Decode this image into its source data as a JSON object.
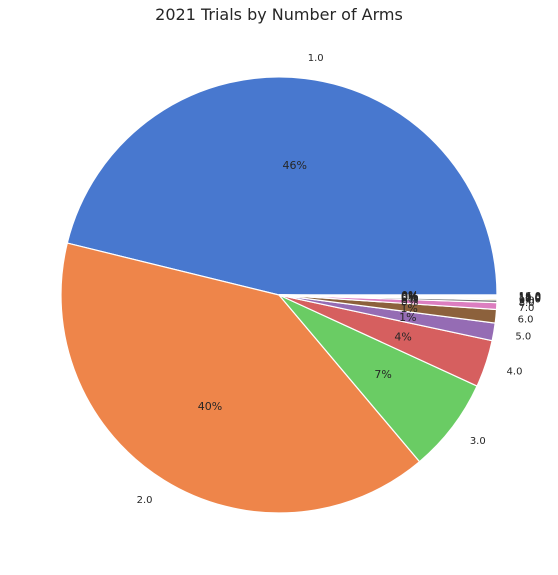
{
  "chart_data": {
    "type": "pie",
    "title": "2021 Trials by Number of Arms",
    "categories": [
      "1.0",
      "2.0",
      "3.0",
      "4.0",
      "5.0",
      "6.0",
      "7.0",
      "8.0",
      "9.0",
      "10.0",
      "11.0",
      "12.0",
      "13.0",
      "14.0",
      "15.0",
      "16.0"
    ],
    "values": [
      46.2,
      40.0,
      7.0,
      3.5,
      1.3,
      1.0,
      0.5,
      0.2,
      0.1,
      0.06,
      0.04,
      0.04,
      0.03,
      0.03,
      0.03,
      0.03
    ],
    "percent_labels": [
      "46%",
      "40%",
      "7%",
      "4%",
      "1%",
      "1%",
      "0%",
      "0%",
      "0%",
      "0%",
      "0%",
      "0%",
      "0%",
      "0%",
      "0%",
      "0%"
    ],
    "colors": [
      "#4878cf",
      "#ee854a",
      "#6acc64",
      "#d65f5f",
      "#956cb4",
      "#8c613c",
      "#dc7ec0",
      "#797979",
      "#d5bb67",
      "#82c6e2",
      "#4878cf",
      "#ee854a",
      "#6acc64",
      "#d65f5f",
      "#956cb4",
      "#8c613c"
    ],
    "start_angle": "0 degrees (3 o'clock)",
    "direction": "counterclockwise",
    "legend": "none"
  }
}
